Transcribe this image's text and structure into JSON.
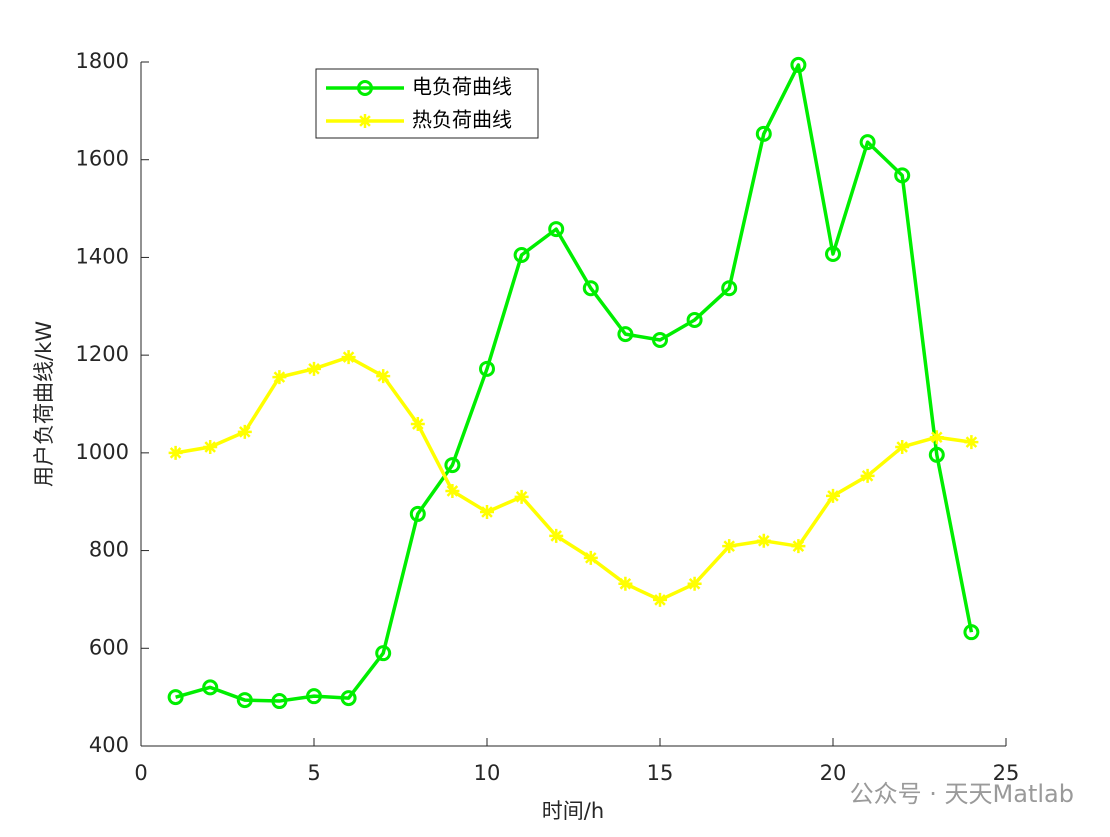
{
  "chart_data": {
    "type": "line",
    "xlabel": "时间/h",
    "ylabel": "用户负荷曲线/kW",
    "x": [
      1,
      2,
      3,
      4,
      5,
      6,
      7,
      8,
      9,
      10,
      11,
      12,
      13,
      14,
      15,
      16,
      17,
      18,
      19,
      20,
      21,
      22,
      23,
      24
    ],
    "series": [
      {
        "name": "电负荷曲线",
        "color": "#00ee00",
        "marker": "circle",
        "values": [
          500,
          520,
          494,
          492,
          502,
          498,
          590,
          875,
          975,
          1172,
          1405,
          1458,
          1337,
          1243,
          1231,
          1272,
          1337,
          1653,
          1794,
          1407,
          1636,
          1568,
          996,
          633
        ]
      },
      {
        "name": "热负荷曲线",
        "color": "#ffff00",
        "marker": "asterisk",
        "values": [
          1000,
          1012,
          1043,
          1155,
          1172,
          1196,
          1157,
          1059,
          922,
          879,
          910,
          830,
          785,
          732,
          699,
          732,
          809,
          820,
          809,
          912,
          953,
          1012,
          1032,
          1022
        ]
      }
    ],
    "xlim": [
      0,
      25
    ],
    "xticks": [
      0,
      5,
      10,
      15,
      20,
      25
    ],
    "ylim": [
      400,
      1800
    ],
    "yticks": [
      400,
      600,
      800,
      1000,
      1200,
      1400,
      1600,
      1800
    ],
    "grid": false,
    "legend": "upper-left",
    "watermark": "公众号 · 天天Matlab"
  }
}
